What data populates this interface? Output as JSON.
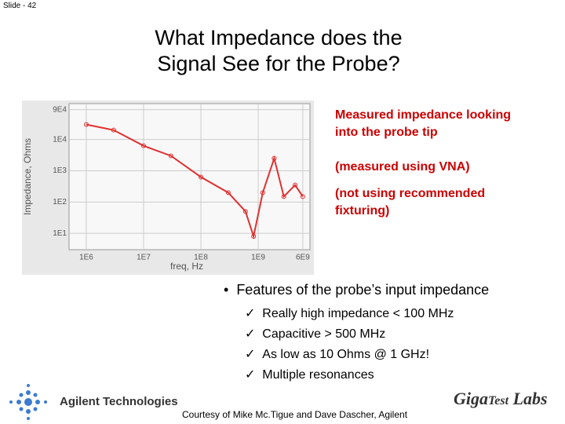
{
  "slide_number": "Slide - 42",
  "title_lines": [
    "What Impedance does the",
    "Signal See for the Probe?"
  ],
  "notes": [
    "Measured impedance looking",
    "into the probe tip",
    "(measured using VNA)",
    "(not using recommended",
    "fixturing)"
  ],
  "bullet": "Features of the probe’s input impedance",
  "sub_bullets": [
    "Really high impedance < 100 MHz",
    "Capacitive > 500 MHz",
    "As low as 10 Ohms @ 1 GHz!",
    "Multiple resonances"
  ],
  "credit": "Courtesy of Mike Mc.Tigue and Dave Dascher, Agilent",
  "logo_left": "Agilent Technologies",
  "logo_right": [
    "Giga",
    "Test",
    "Labs"
  ],
  "chart_data": {
    "type": "line",
    "xlabel": "freq, Hz",
    "ylabel": "Impedance, Ohms",
    "x": [
      1000000,
      3000000,
      10000000,
      30000000,
      100000000,
      300000000,
      600000000,
      830000000,
      1200000000,
      1900000000,
      2800000000,
      4400000000,
      6000000000
    ],
    "series": [
      {
        "name": "Impedance",
        "color": "#e03030",
        "values": [
          30000,
          20000,
          6300,
          3000,
          630,
          200,
          50,
          8,
          200,
          2500,
          150,
          350,
          150
        ]
      }
    ],
    "xlim": [
      500000,
      8000000000
    ],
    "ylim": [
      3,
      140000
    ],
    "xlog": true,
    "ylog": true,
    "grid": true,
    "xticks": [
      {
        "value": 1000000,
        "label": "1E6"
      },
      {
        "value": 10000000,
        "label": "1E7"
      },
      {
        "value": 100000000,
        "label": "1E8"
      },
      {
        "value": 1000000000,
        "label": "1E9"
      },
      {
        "value": 6000000000,
        "label": "6E9"
      }
    ],
    "yticks": [
      {
        "value": 10,
        "label": "1E1"
      },
      {
        "value": 100,
        "label": "1E2"
      },
      {
        "value": 1000,
        "label": "1E3"
      },
      {
        "value": 10000,
        "label": "1E4"
      },
      {
        "value": 90000,
        "label": "9E4"
      }
    ]
  }
}
